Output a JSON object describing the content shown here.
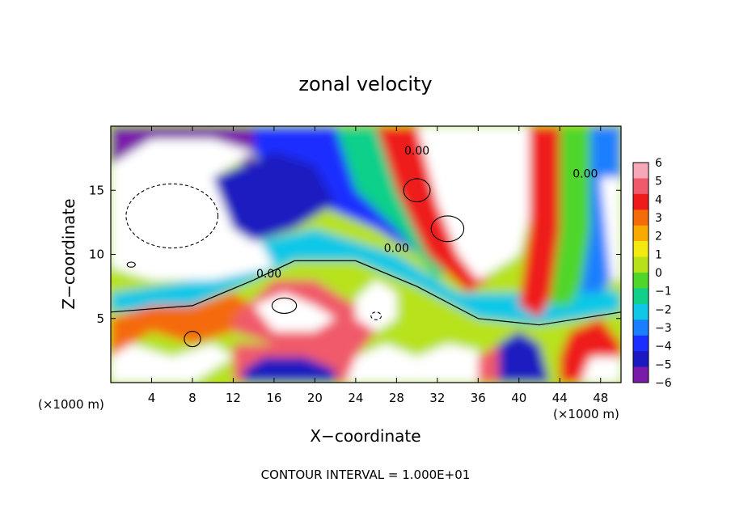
{
  "chart_data": {
    "type": "heatmap",
    "title": "zonal velocity",
    "xlabel": "X−coordinate",
    "ylabel": "Z−coordinate",
    "x_unit_left": "(×1000 m)",
    "x_unit_right": "(×1000 m)",
    "footer": "CONTOUR INTERVAL = 1.000E+01",
    "xlim": [
      0,
      50
    ],
    "ylim": [
      0,
      20
    ],
    "x_ticks": [
      4,
      8,
      12,
      16,
      20,
      24,
      28,
      32,
      36,
      40,
      44,
      48
    ],
    "y_ticks": [
      5,
      10,
      15
    ],
    "colorbar": {
      "min": -6,
      "max": 6,
      "ticks": [
        "6",
        "5",
        "4",
        "3",
        "2",
        "1",
        "0",
        "−1",
        "−2",
        "−3",
        "−4",
        "−5",
        "−6"
      ],
      "colors": [
        "#f7a8b8",
        "#f05a6a",
        "#ef1a1a",
        "#f46b0a",
        "#f9aa00",
        "#f3ea10",
        "#b7e21a",
        "#4fd62a",
        "#10d08a",
        "#10c8e6",
        "#1a7fff",
        "#1a2fff",
        "#1a1ac0",
        "#7a1aaa"
      ]
    },
    "contour_labels": [
      "0.00",
      "0.00",
      "0.00",
      "0.00"
    ],
    "regions": [
      {
        "type": "background",
        "value": 0.5
      },
      {
        "type": "band",
        "value": -2.5,
        "pts": [
          [
            0,
            5.5
          ],
          [
            8,
            6
          ],
          [
            14,
            8
          ],
          [
            18,
            9.5
          ],
          [
            24,
            9.5
          ],
          [
            30,
            7.5
          ],
          [
            36,
            5
          ],
          [
            42,
            4.5
          ],
          [
            46,
            5
          ],
          [
            50,
            5.5
          ],
          [
            50,
            7
          ],
          [
            46,
            8
          ],
          [
            42,
            7
          ],
          [
            34,
            7
          ],
          [
            28,
            10
          ],
          [
            20,
            12
          ],
          [
            14,
            11
          ],
          [
            8,
            8
          ],
          [
            0,
            7
          ]
        ]
      },
      {
        "type": "blob",
        "value": -4.0,
        "pts": [
          [
            12,
            20
          ],
          [
            22,
            20
          ],
          [
            26,
            15
          ],
          [
            28,
            13
          ],
          [
            30,
            10
          ],
          [
            26,
            12
          ],
          [
            20,
            14
          ],
          [
            16,
            16
          ]
        ]
      },
      {
        "type": "blob",
        "value": -1.5,
        "pts": [
          [
            22,
            20
          ],
          [
            28,
            20
          ],
          [
            30,
            15
          ],
          [
            34,
            10
          ],
          [
            32,
            8
          ],
          [
            28,
            12
          ],
          [
            24,
            15
          ]
        ]
      },
      {
        "type": "blob",
        "value": 4.0,
        "pts": [
          [
            26,
            20
          ],
          [
            30,
            20
          ],
          [
            33,
            14
          ],
          [
            37,
            8
          ],
          [
            35,
            7
          ],
          [
            31,
            10
          ],
          [
            28,
            15
          ]
        ]
      },
      {
        "type": "blob",
        "value": 6.5,
        "pts": [
          [
            30,
            20
          ],
          [
            41,
            20
          ],
          [
            42,
            16
          ],
          [
            40,
            10
          ],
          [
            36,
            8
          ],
          [
            34,
            10
          ],
          [
            32,
            14
          ]
        ]
      },
      {
        "type": "blob",
        "value": 4.0,
        "pts": [
          [
            41,
            20
          ],
          [
            45,
            20
          ],
          [
            45,
            14
          ],
          [
            44,
            8
          ],
          [
            42,
            5
          ],
          [
            40,
            6
          ],
          [
            41,
            12
          ]
        ]
      },
      {
        "type": "blob",
        "value": 0.0,
        "pts": [
          [
            44,
            20
          ],
          [
            48,
            20
          ],
          [
            48,
            14
          ],
          [
            47,
            9
          ],
          [
            45,
            6
          ],
          [
            43,
            6
          ],
          [
            44,
            12
          ]
        ]
      },
      {
        "type": "blob",
        "value": -3.0,
        "pts": [
          [
            47,
            20
          ],
          [
            50,
            20
          ],
          [
            50,
            9
          ],
          [
            48,
            7
          ],
          [
            46,
            7
          ],
          [
            47,
            12
          ]
        ]
      },
      {
        "type": "blob",
        "value": 6.5,
        "pts": [
          [
            48,
            16
          ],
          [
            50,
            16
          ],
          [
            50,
            8
          ],
          [
            49,
            8
          ]
        ]
      },
      {
        "type": "blob",
        "value": -7.0,
        "pts": [
          [
            0,
            20
          ],
          [
            14,
            20
          ],
          [
            14,
            17
          ],
          [
            8,
            18
          ],
          [
            2,
            17
          ],
          [
            0,
            15
          ]
        ]
      },
      {
        "type": "blob",
        "value": 7.0,
        "pts": [
          [
            0,
            17
          ],
          [
            4,
            19
          ],
          [
            10,
            19
          ],
          [
            14,
            18
          ],
          [
            10,
            16
          ],
          [
            14,
            12
          ],
          [
            16,
            9
          ],
          [
            10,
            8
          ],
          [
            4,
            8
          ],
          [
            0,
            9
          ]
        ]
      },
      {
        "type": "blob",
        "value": -4.5,
        "pts": [
          [
            10,
            16
          ],
          [
            16,
            18
          ],
          [
            20,
            17
          ],
          [
            22,
            14
          ],
          [
            18,
            12
          ],
          [
            14,
            11
          ],
          [
            12,
            12
          ]
        ]
      },
      {
        "type": "blob",
        "value": 3.0,
        "pts": [
          [
            0,
            2
          ],
          [
            4,
            4
          ],
          [
            8,
            3
          ],
          [
            12,
            4
          ],
          [
            14,
            6
          ],
          [
            12,
            7
          ],
          [
            8,
            6
          ],
          [
            4,
            6
          ],
          [
            0,
            5
          ]
        ]
      },
      {
        "type": "blob",
        "value": 7.0,
        "pts": [
          [
            0,
            0
          ],
          [
            8,
            0
          ],
          [
            12,
            2
          ],
          [
            10,
            3
          ],
          [
            6,
            2
          ],
          [
            2,
            3
          ],
          [
            0,
            2
          ]
        ]
      },
      {
        "type": "blob",
        "value": 4.5,
        "pts": [
          [
            12,
            0
          ],
          [
            24,
            0
          ],
          [
            24,
            3
          ],
          [
            20,
            4
          ],
          [
            16,
            3
          ],
          [
            12,
            3
          ]
        ]
      },
      {
        "type": "blob",
        "value": -5.0,
        "pts": [
          [
            13,
            0
          ],
          [
            22,
            0
          ],
          [
            22,
            1
          ],
          [
            19,
            2
          ],
          [
            15,
            2
          ],
          [
            13,
            1
          ]
        ]
      },
      {
        "type": "blob",
        "value": 4.5,
        "pts": [
          [
            12,
            5
          ],
          [
            16,
            8
          ],
          [
            20,
            8
          ],
          [
            24,
            6
          ],
          [
            26,
            4
          ],
          [
            24,
            2
          ],
          [
            20,
            3
          ],
          [
            16,
            3
          ],
          [
            12,
            4
          ]
        ]
      },
      {
        "type": "blob",
        "value": 7.0,
        "pts": [
          [
            14,
            6
          ],
          [
            17,
            7
          ],
          [
            20,
            6
          ],
          [
            22,
            5
          ],
          [
            20,
            4
          ],
          [
            16,
            4
          ]
        ]
      },
      {
        "type": "blob",
        "value": 7.0,
        "pts": [
          [
            23,
            0
          ],
          [
            30,
            0
          ],
          [
            30,
            2
          ],
          [
            27,
            3
          ],
          [
            24,
            2
          ]
        ]
      },
      {
        "type": "blob",
        "value": 7.0,
        "pts": [
          [
            24,
            6.5
          ],
          [
            26,
            8
          ],
          [
            28,
            7
          ],
          [
            28,
            5
          ],
          [
            26,
            4
          ],
          [
            24,
            5
          ]
        ]
      },
      {
        "type": "blob",
        "value": 7.0,
        "pts": [
          [
            30,
            0
          ],
          [
            36,
            0
          ],
          [
            36,
            2.5
          ],
          [
            33,
            3
          ],
          [
            30,
            2
          ]
        ]
      },
      {
        "type": "blob",
        "value": 4.5,
        "pts": [
          [
            36,
            0
          ],
          [
            40,
            0
          ],
          [
            41,
            2
          ],
          [
            38,
            3
          ],
          [
            36,
            2
          ]
        ]
      },
      {
        "type": "blob",
        "value": -4.5,
        "pts": [
          [
            38,
            0
          ],
          [
            43,
            0
          ],
          [
            42,
            3
          ],
          [
            40,
            4
          ],
          [
            38,
            3
          ]
        ]
      },
      {
        "type": "blob",
        "value": 4.0,
        "pts": [
          [
            44,
            0
          ],
          [
            50,
            0
          ],
          [
            50,
            3
          ],
          [
            48,
            5
          ],
          [
            45,
            4
          ],
          [
            44,
            2
          ]
        ]
      },
      {
        "type": "blob",
        "value": 7.0,
        "pts": [
          [
            46,
            0
          ],
          [
            50,
            0
          ],
          [
            50,
            2
          ],
          [
            47,
            2
          ]
        ]
      }
    ]
  }
}
